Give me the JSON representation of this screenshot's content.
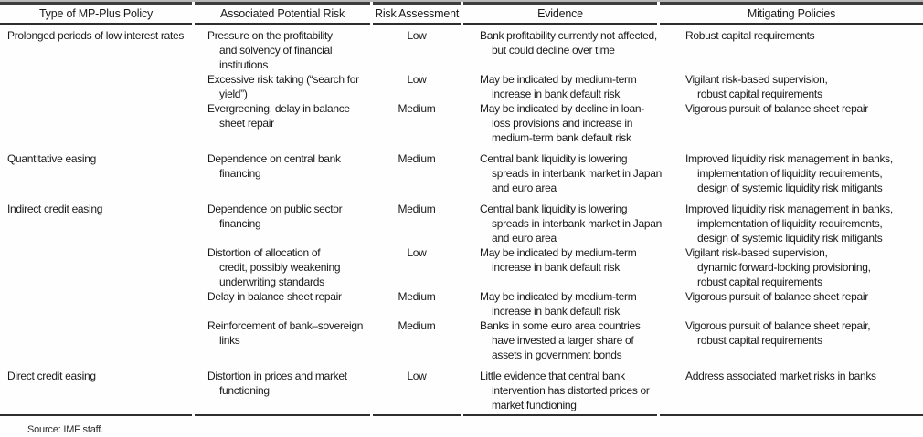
{
  "table": {
    "headers": [
      "Type of MP-Plus Policy",
      "Associated Potential Risk",
      "Risk Assessment",
      "Evidence",
      "Mitigating Policies"
    ],
    "rows": [
      {
        "policy": "Prolonged periods of low interest rates",
        "group_gap": false,
        "risk": "Pressure on the profitability\nand solvency of financial\ninstitutions",
        "assessment": "Low",
        "evidence": "Bank profitability currently not affected,\nbut could decline over time",
        "mitigating": "Robust capital requirements"
      },
      {
        "policy": "",
        "group_gap": false,
        "risk": "Excessive risk taking (“search for\nyield”)",
        "assessment": "Low",
        "evidence": "May be indicated by medium-term\nincrease in bank default risk",
        "mitigating": "Vigilant risk-based supervision,\nrobust capital requirements"
      },
      {
        "policy": "",
        "group_gap": false,
        "risk": "Evergreening, delay in balance\nsheet repair",
        "assessment": "Medium",
        "evidence": "May be indicated by decline in loan-\nloss provisions and increase in\nmedium-term bank default risk",
        "mitigating": "Vigorous pursuit of balance sheet repair"
      },
      {
        "policy": "Quantitative easing",
        "group_gap": true,
        "risk": "Dependence on central bank\nfinancing",
        "assessment": "Medium",
        "evidence": "Central bank liquidity is lowering\nspreads in interbank market in Japan\nand euro area",
        "mitigating": "Improved liquidity risk management in banks,\nimplementation of liquidity requirements,\ndesign of systemic liquidity risk mitigants"
      },
      {
        "policy": "Indirect credit easing",
        "group_gap": true,
        "risk": "Dependence on public sector\nfinancing",
        "assessment": "Medium",
        "evidence": "Central bank liquidity is lowering\nspreads in interbank market in Japan\nand euro area",
        "mitigating": "Improved liquidity risk management in banks,\nimplementation of liquidity requirements,\ndesign of systemic liquidity risk mitigants"
      },
      {
        "policy": "",
        "group_gap": false,
        "risk": "Distortion of allocation of\ncredit, possibly weakening\nunderwriting standards",
        "assessment": "Low",
        "evidence": "May be indicated by medium-term\nincrease in bank default risk",
        "mitigating": "Vigilant risk-based supervision,\ndynamic forward-looking provisioning,\nrobust capital requirements"
      },
      {
        "policy": "",
        "group_gap": false,
        "risk": "Delay in balance sheet repair",
        "assessment": "Medium",
        "evidence": "May be indicated by medium-term\nincrease in bank default risk",
        "mitigating": "Vigorous pursuit of balance sheet repair"
      },
      {
        "policy": "",
        "group_gap": false,
        "risk": "Reinforcement of bank–sovereign\nlinks",
        "assessment": "Medium",
        "evidence": "Banks in some euro area countries\nhave invested a larger share of\nassets in government bonds",
        "mitigating": "Vigorous pursuit of balance sheet repair,\nrobust capital requirements"
      },
      {
        "policy": "Direct credit easing",
        "group_gap": true,
        "risk": "Distortion in prices and market\nfunctioning",
        "assessment": "Low",
        "evidence": "Little evidence that central bank\nintervention has distorted prices or\nmarket functioning",
        "mitigating": "Address associated market risks in banks"
      }
    ],
    "source": "Source: IMF staff."
  }
}
